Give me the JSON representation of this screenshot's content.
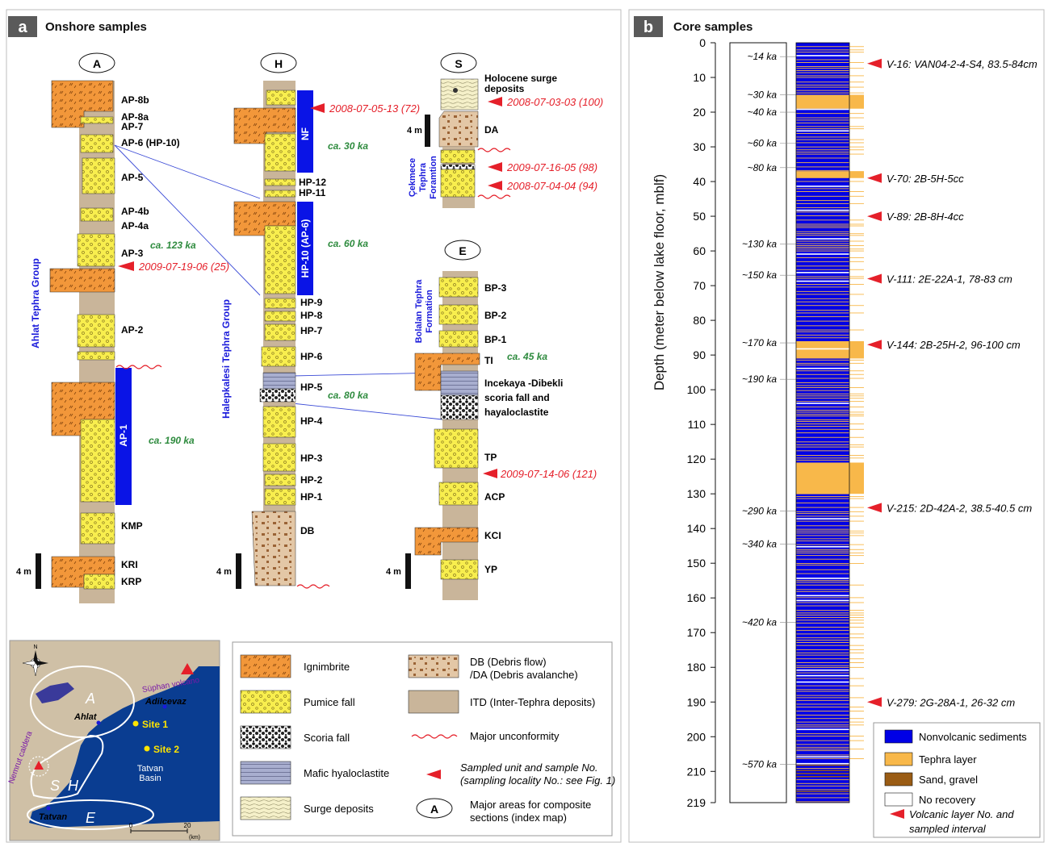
{
  "panel_a": {
    "letter": "a",
    "title": "Onshore samples",
    "col_A": {
      "label": "A",
      "units": [
        "AP-8b",
        "AP-8a",
        "AP-7",
        "AP-6 (HP-10)",
        "AP-5",
        "AP-4b",
        "AP-4a",
        "AP-3",
        "AP-2",
        "KMP",
        "KRI",
        "KRP"
      ],
      "bar": "AP-1",
      "group": "Ahlat Tephra Group",
      "age_1": "ca. 123 ka",
      "age_2": "ca. 190 ka",
      "sample": "2009-07-19-06 (25)",
      "scale": "4 m"
    },
    "col_H": {
      "label": "H",
      "units": [
        "HP-12",
        "HP-11",
        "HP-9",
        "HP-8",
        "HP-7",
        "HP-6",
        "HP-5",
        "HP-4",
        "HP-3",
        "HP-2",
        "HP-1",
        "DB"
      ],
      "bar_1": "NF",
      "bar_2": "HP-10 (AP-6)",
      "group": "Halepkalesi Tephra Group",
      "age_1": "ca. 30 ka",
      "age_2": "ca. 60 ka",
      "age_3": "ca. 80 ka",
      "sample": "2008-07-05-13 (72)",
      "scale": "4 m"
    },
    "col_S": {
      "label": "S",
      "surge_1": "Holocene surge",
      "surge_2": "deposits",
      "da": "DA",
      "formation": [
        "Çekmece",
        "Tephra",
        "Foramtion"
      ],
      "samples": [
        "2008-07-03-03 (100)",
        "2009-07-16-05 (98)",
        "2008-07-04-04 (94)"
      ],
      "scale": "4 m"
    },
    "col_E": {
      "label": "E",
      "units": [
        "BP-3",
        "BP-2",
        "BP-1",
        "TI",
        "TP",
        "ACP",
        "KCI",
        "YP"
      ],
      "inc": [
        "Incekaya -Dibekli",
        "scoria fall and",
        "hayaloclastite"
      ],
      "formation": [
        "Bolalan Tephra",
        "Formation"
      ],
      "age": "ca. 45 ka",
      "sample": "2009-07-14-06 (121)",
      "scale": "4 m"
    }
  },
  "map": {
    "north": "N",
    "suphan": "Süphan volcano",
    "adilcevaz": "Adilcevaz",
    "ahlat": "Ahlat",
    "site1": "Site 1",
    "site2": "Site 2",
    "basin_1": "Tatvan",
    "basin_2": "Basin",
    "nemrut": "Nemrut caldera",
    "tatvan": "Tatvan",
    "area_A": "A",
    "area_S": "S",
    "area_H": "H",
    "area_E": "E",
    "scale_0": "0",
    "scale_20": "20",
    "scale_km": "(km)"
  },
  "legend_a": {
    "ignimbrite": "Ignimbrite",
    "pumice": "Pumice fall",
    "scoria": "Scoria fall",
    "mafic": "Mafic hyaloclastite",
    "surge": "Surge deposits",
    "db_1": "DB (Debris flow)",
    "db_2": "/DA (Debris avalanche)",
    "itd": "ITD (Inter-Tephra deposits)",
    "unconf": "Major unconformity",
    "sampled_1": "Sampled unit and sample No.",
    "sampled_2": "(sampling locality No.: see Fig. 1)",
    "major_1": "Major areas for composite",
    "major_2": "sections (index map)",
    "major_sym": "A"
  },
  "panel_b": {
    "letter": "b",
    "title": "Core samples",
    "yaxis_label": "Depth (meter below lake floor, mblf)",
    "ticks": [
      "0",
      "10",
      "20",
      "30",
      "40",
      "50",
      "60",
      "70",
      "80",
      "90",
      "100",
      "110",
      "120",
      "130",
      "140",
      "150",
      "160",
      "170",
      "180",
      "190",
      "200",
      "210",
      "219"
    ],
    "ages": [
      {
        "label": "~14 ka",
        "depth": 4
      },
      {
        "label": "~30 ka",
        "depth": 15
      },
      {
        "label": "~40 ka",
        "depth": 20
      },
      {
        "label": "~60 ka",
        "depth": 29
      },
      {
        "label": "~80 ka",
        "depth": 36
      },
      {
        "label": "~130 ka",
        "depth": 58
      },
      {
        "label": "~150 ka",
        "depth": 67
      },
      {
        "label": "~170 ka",
        "depth": 86.5
      },
      {
        "label": "~190 ka",
        "depth": 97
      },
      {
        "label": "~290 ka",
        "depth": 135
      },
      {
        "label": "~340 ka",
        "depth": 144.5
      },
      {
        "label": "~420 ka",
        "depth": 167
      },
      {
        "label": "~570 ka",
        "depth": 208
      }
    ],
    "samples": [
      {
        "label": "V-16: VAN04-2-4-S4, 83.5-84cm",
        "depth": 6
      },
      {
        "label": "V-70: 2B-5H-5cc",
        "depth": 39
      },
      {
        "label": "V-89: 2B-8H-4cc",
        "depth": 50
      },
      {
        "label": "V-111: 2E-22A-1, 78-83 cm",
        "depth": 68
      },
      {
        "label": "V-144: 2B-25H-2, 96-100 cm",
        "depth": 87
      },
      {
        "label": "V-215: 2D-42A-2, 38.5-40.5 cm",
        "depth": 134
      },
      {
        "label": "V-279: 2G-28A-1, 26-32 cm",
        "depth": 190
      }
    ],
    "legend": {
      "nonvolcanic": "Nonvolcanic sediments",
      "tephra": "Tephra layer",
      "sand": "Sand, gravel",
      "norecovery": "No recovery",
      "volcanic_1": "Volcanic layer No. and",
      "volcanic_2": "sampled interval"
    }
  },
  "colors": {
    "nonvolcanic": "#0000e6",
    "tephra": "#f8b84a",
    "sand": "#9a5c14",
    "pumice": "#f8ee4e",
    "ignimbrite": "#f2973a",
    "itd": "#c9b59a",
    "sample_arrow": "#e5202a",
    "age_green": "#2e8b3e",
    "group_blue": "#1a1adb",
    "lake": "#0a3d91",
    "land": "#cfc0a6"
  }
}
